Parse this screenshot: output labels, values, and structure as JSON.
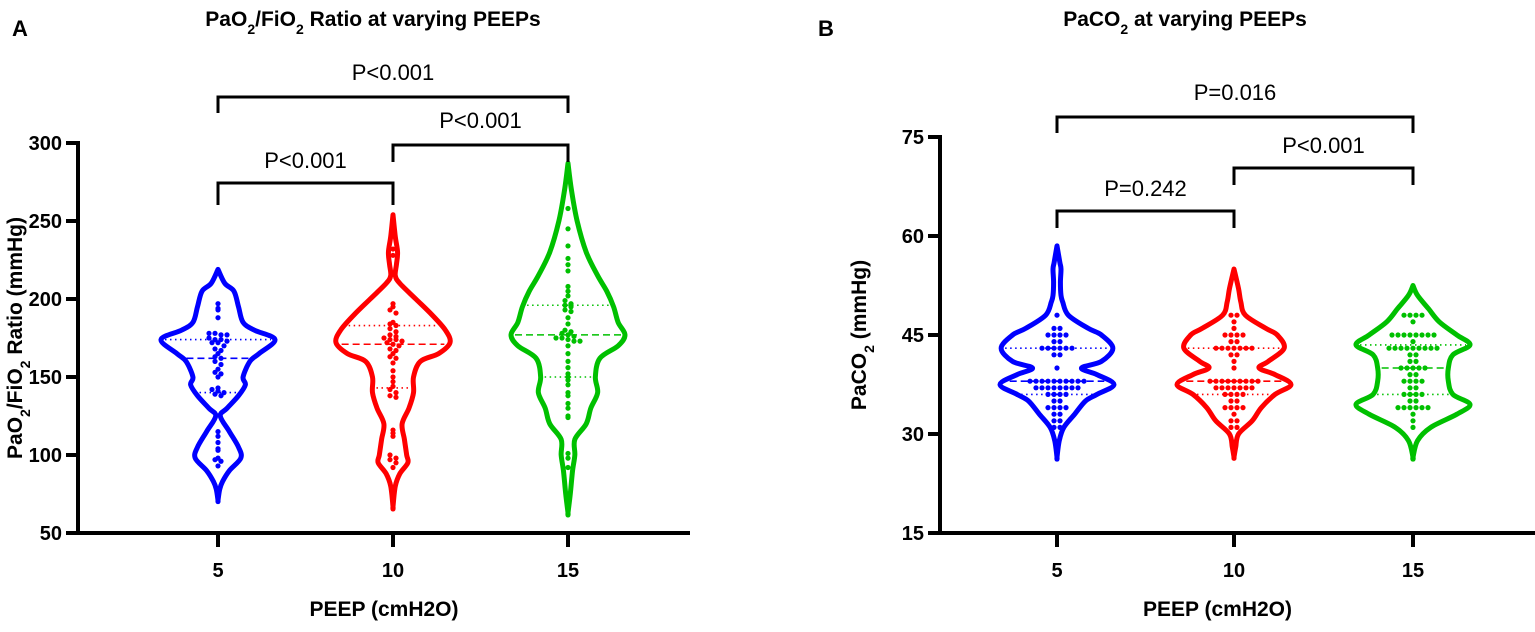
{
  "chart_data": [
    {
      "type": "violin",
      "panel_label": "A",
      "title_parts": [
        [
          "PaO",
          ""
        ],
        [
          "2",
          "sub"
        ],
        [
          "/FiO",
          ""
        ],
        [
          "2",
          "sub"
        ],
        [
          " Ratio at varying PEEPs",
          ""
        ]
      ],
      "ylabel_parts": [
        [
          "PaO",
          ""
        ],
        [
          "2",
          "sub"
        ],
        [
          "/FiO",
          ""
        ],
        [
          "2",
          "sub"
        ],
        [
          " Ratio (mmHg)",
          ""
        ]
      ],
      "xlabel": "PEEP (cmH2O)",
      "categories": [
        "5",
        "10",
        "15"
      ],
      "ylim": [
        50,
        300
      ],
      "yticks": [
        "50",
        "100",
        "150",
        "200",
        "250",
        "300"
      ],
      "colors": [
        "#0000ff",
        "#ff0000",
        "#00c000"
      ],
      "series": [
        {
          "name": "5",
          "median": 162,
          "q1": 140,
          "q3": 174,
          "density": [
            [
              219,
              0
            ],
            [
              210,
              0.12
            ],
            [
              205,
              0.28
            ],
            [
              195,
              0.36
            ],
            [
              185,
              0.44
            ],
            [
              180,
              0.64
            ],
            [
              174,
              1
            ],
            [
              165,
              0.72
            ],
            [
              160,
              0.56
            ],
            [
              150,
              0.44
            ],
            [
              145,
              0.48
            ],
            [
              138,
              0.36
            ],
            [
              130,
              0.16
            ],
            [
              125,
              0.04
            ],
            [
              115,
              0.2
            ],
            [
              105,
              0.36
            ],
            [
              98,
              0.4
            ],
            [
              90,
              0.2
            ],
            [
              83,
              0.08
            ],
            [
              78,
              0.03
            ],
            [
              71,
              0
            ]
          ],
          "points": [
            197,
            194,
            193,
            188,
            178,
            178,
            177,
            177,
            175,
            174,
            174,
            173,
            172,
            172,
            170,
            168,
            167,
            165,
            163,
            162,
            160,
            158,
            155,
            153,
            152,
            150,
            143,
            142,
            141,
            140,
            139,
            138,
            115,
            112,
            108,
            104,
            103,
            98,
            97,
            96,
            93
          ]
        },
        {
          "name": "10",
          "median": 171,
          "q1": 143,
          "q3": 183,
          "density": [
            [
              254,
              0
            ],
            [
              240,
              0.04
            ],
            [
              230,
              0.08
            ],
            [
              222,
              0.06
            ],
            [
              215,
              0.04
            ],
            [
              210,
              0.12
            ],
            [
              200,
              0.4
            ],
            [
              190,
              0.68
            ],
            [
              180,
              0.92
            ],
            [
              172,
              1
            ],
            [
              165,
              0.8
            ],
            [
              160,
              0.48
            ],
            [
              150,
              0.36
            ],
            [
              140,
              0.36
            ],
            [
              130,
              0.28
            ],
            [
              120,
              0.16
            ],
            [
              110,
              0.2
            ],
            [
              100,
              0.24
            ],
            [
              95,
              0.26
            ],
            [
              88,
              0.12
            ],
            [
              80,
              0.04
            ],
            [
              67,
              0
            ]
          ],
          "points": [
            232,
            228,
            197,
            195,
            193,
            191,
            185,
            184,
            183,
            181,
            179,
            177,
            176,
            175,
            174,
            174,
            173,
            172,
            171,
            170,
            168,
            167,
            165,
            163,
            162,
            159,
            154,
            150,
            147,
            144,
            142,
            140,
            138,
            137,
            116,
            114,
            112,
            100,
            98,
            97,
            95,
            92
          ]
        },
        {
          "name": "15",
          "median": 177,
          "q1": 150,
          "q3": 196,
          "density": [
            [
              287,
              0
            ],
            [
              270,
              0.06
            ],
            [
              250,
              0.16
            ],
            [
              230,
              0.32
            ],
            [
              215,
              0.52
            ],
            [
              205,
              0.68
            ],
            [
              195,
              0.8
            ],
            [
              185,
              0.88
            ],
            [
              177,
              1
            ],
            [
              170,
              0.88
            ],
            [
              162,
              0.56
            ],
            [
              150,
              0.48
            ],
            [
              140,
              0.52
            ],
            [
              130,
              0.4
            ],
            [
              120,
              0.32
            ],
            [
              110,
              0.12
            ],
            [
              100,
              0.12
            ],
            [
              90,
              0.08
            ],
            [
              75,
              0.04
            ],
            [
              63,
              0
            ]
          ],
          "points": [
            258,
            245,
            234,
            226,
            222,
            218,
            208,
            205,
            202,
            199,
            197,
            196,
            195,
            193,
            192,
            188,
            184,
            180,
            179,
            178,
            177,
            176,
            175,
            175,
            174,
            173,
            173,
            170,
            165,
            160,
            156,
            152,
            150,
            148,
            145,
            140,
            138,
            133,
            130,
            125,
            124,
            101,
            98,
            92
          ]
        }
      ],
      "comparisons": [
        {
          "from": 0,
          "to": 2,
          "label": "P<0.001",
          "level": 3
        },
        {
          "from": 1,
          "to": 2,
          "label": "P<0.001",
          "level": 2
        },
        {
          "from": 0,
          "to": 1,
          "label": "P<0.001",
          "level": 1
        }
      ]
    },
    {
      "type": "violin",
      "panel_label": "B",
      "title_parts": [
        [
          "PaCO",
          ""
        ],
        [
          "2",
          "sub"
        ],
        [
          " at varying PEEPs",
          ""
        ]
      ],
      "ylabel_parts": [
        [
          "PaCO",
          ""
        ],
        [
          "2",
          "sub"
        ],
        [
          " (mmHg)",
          ""
        ]
      ],
      "xlabel": "PEEP (cmH2O)",
      "categories": [
        "5",
        "10",
        "15"
      ],
      "ylim": [
        15,
        75
      ],
      "yticks": [
        "15",
        "30",
        "45",
        "60",
        "75"
      ],
      "colors": [
        "#0000ff",
        "#ff0000",
        "#00c000"
      ],
      "series": [
        {
          "name": "5",
          "median": 38,
          "q1": 36,
          "q3": 43,
          "density": [
            [
              58.5,
              0
            ],
            [
              56,
              0.05
            ],
            [
              55,
              0.07
            ],
            [
              53,
              0.06
            ],
            [
              51,
              0.07
            ],
            [
              50,
              0.1
            ],
            [
              48,
              0.2
            ],
            [
              46,
              0.55
            ],
            [
              45,
              0.78
            ],
            [
              43,
              0.98
            ],
            [
              41,
              0.78
            ],
            [
              40,
              0.43
            ],
            [
              39,
              0.7
            ],
            [
              37.5,
              1
            ],
            [
              36,
              0.7
            ],
            [
              35,
              0.5
            ],
            [
              33,
              0.31
            ],
            [
              31,
              0.12
            ],
            [
              29,
              0.04
            ],
            [
              26.5,
              0
            ]
          ],
          "points": [
            48,
            46,
            46,
            45,
            45,
            45,
            45,
            44,
            44,
            43,
            43,
            43,
            43,
            43,
            43,
            42,
            42,
            40,
            38,
            38,
            38,
            38,
            38,
            38,
            38,
            38,
            38,
            38,
            37,
            37,
            37,
            37,
            37,
            37,
            37,
            37,
            36,
            36,
            36,
            36,
            35,
            35,
            34,
            34,
            34,
            34,
            33,
            33,
            32,
            32,
            31,
            31
          ]
        },
        {
          "name": "10",
          "median": 38,
          "q1": 36,
          "q3": 43,
          "density": [
            [
              55,
              0
            ],
            [
              52,
              0.08
            ],
            [
              50,
              0.12
            ],
            [
              48,
              0.2
            ],
            [
              46,
              0.56
            ],
            [
              45,
              0.76
            ],
            [
              43,
              0.88
            ],
            [
              41,
              0.6
            ],
            [
              40,
              0.44
            ],
            [
              39,
              0.72
            ],
            [
              37.5,
              1
            ],
            [
              36,
              0.72
            ],
            [
              34,
              0.48
            ],
            [
              32,
              0.32
            ],
            [
              30,
              0.08
            ],
            [
              28,
              0.03
            ],
            [
              26.5,
              0
            ]
          ],
          "points": [
            48,
            48,
            47,
            46,
            45,
            45,
            45,
            45,
            44,
            44,
            43,
            43,
            43,
            43,
            43,
            43,
            43,
            42,
            42,
            41,
            40,
            38,
            38,
            38,
            38,
            38,
            38,
            38,
            38,
            38,
            37,
            37,
            37,
            37,
            37,
            37,
            37,
            36,
            36,
            36,
            36,
            35,
            35,
            34,
            34,
            34,
            34,
            33,
            32,
            32,
            31,
            31
          ]
        },
        {
          "name": "15",
          "median": 40,
          "q1": 36,
          "q3": 43.5,
          "density": [
            [
              52.5,
              0
            ],
            [
              51,
              0.08
            ],
            [
              49,
              0.27
            ],
            [
              47,
              0.46
            ],
            [
              45,
              0.77
            ],
            [
              43.5,
              1
            ],
            [
              42,
              0.7
            ],
            [
              40,
              0.62
            ],
            [
              38,
              0.62
            ],
            [
              36,
              0.7
            ],
            [
              34.5,
              1
            ],
            [
              33,
              0.77
            ],
            [
              31,
              0.31
            ],
            [
              29,
              0.08
            ],
            [
              26.5,
              0
            ]
          ],
          "points": [
            48,
            48,
            48,
            48,
            47,
            45,
            45,
            45,
            45,
            45,
            45,
            45,
            45,
            44,
            43,
            43,
            43,
            43,
            43,
            43,
            43,
            43,
            43,
            42,
            42,
            41,
            41,
            40,
            40,
            40,
            40,
            40,
            39,
            39,
            38,
            38,
            38,
            38,
            37,
            37,
            36,
            36,
            36,
            36,
            35,
            35,
            34,
            34,
            34,
            34,
            34,
            34,
            33,
            32,
            31
          ]
        }
      ],
      "comparisons": [
        {
          "from": 0,
          "to": 2,
          "label": "P=0.016",
          "level": 3
        },
        {
          "from": 1,
          "to": 2,
          "label": "P<0.001",
          "level": 2
        },
        {
          "from": 0,
          "to": 1,
          "label": "P=0.242",
          "level": 1
        }
      ]
    }
  ]
}
